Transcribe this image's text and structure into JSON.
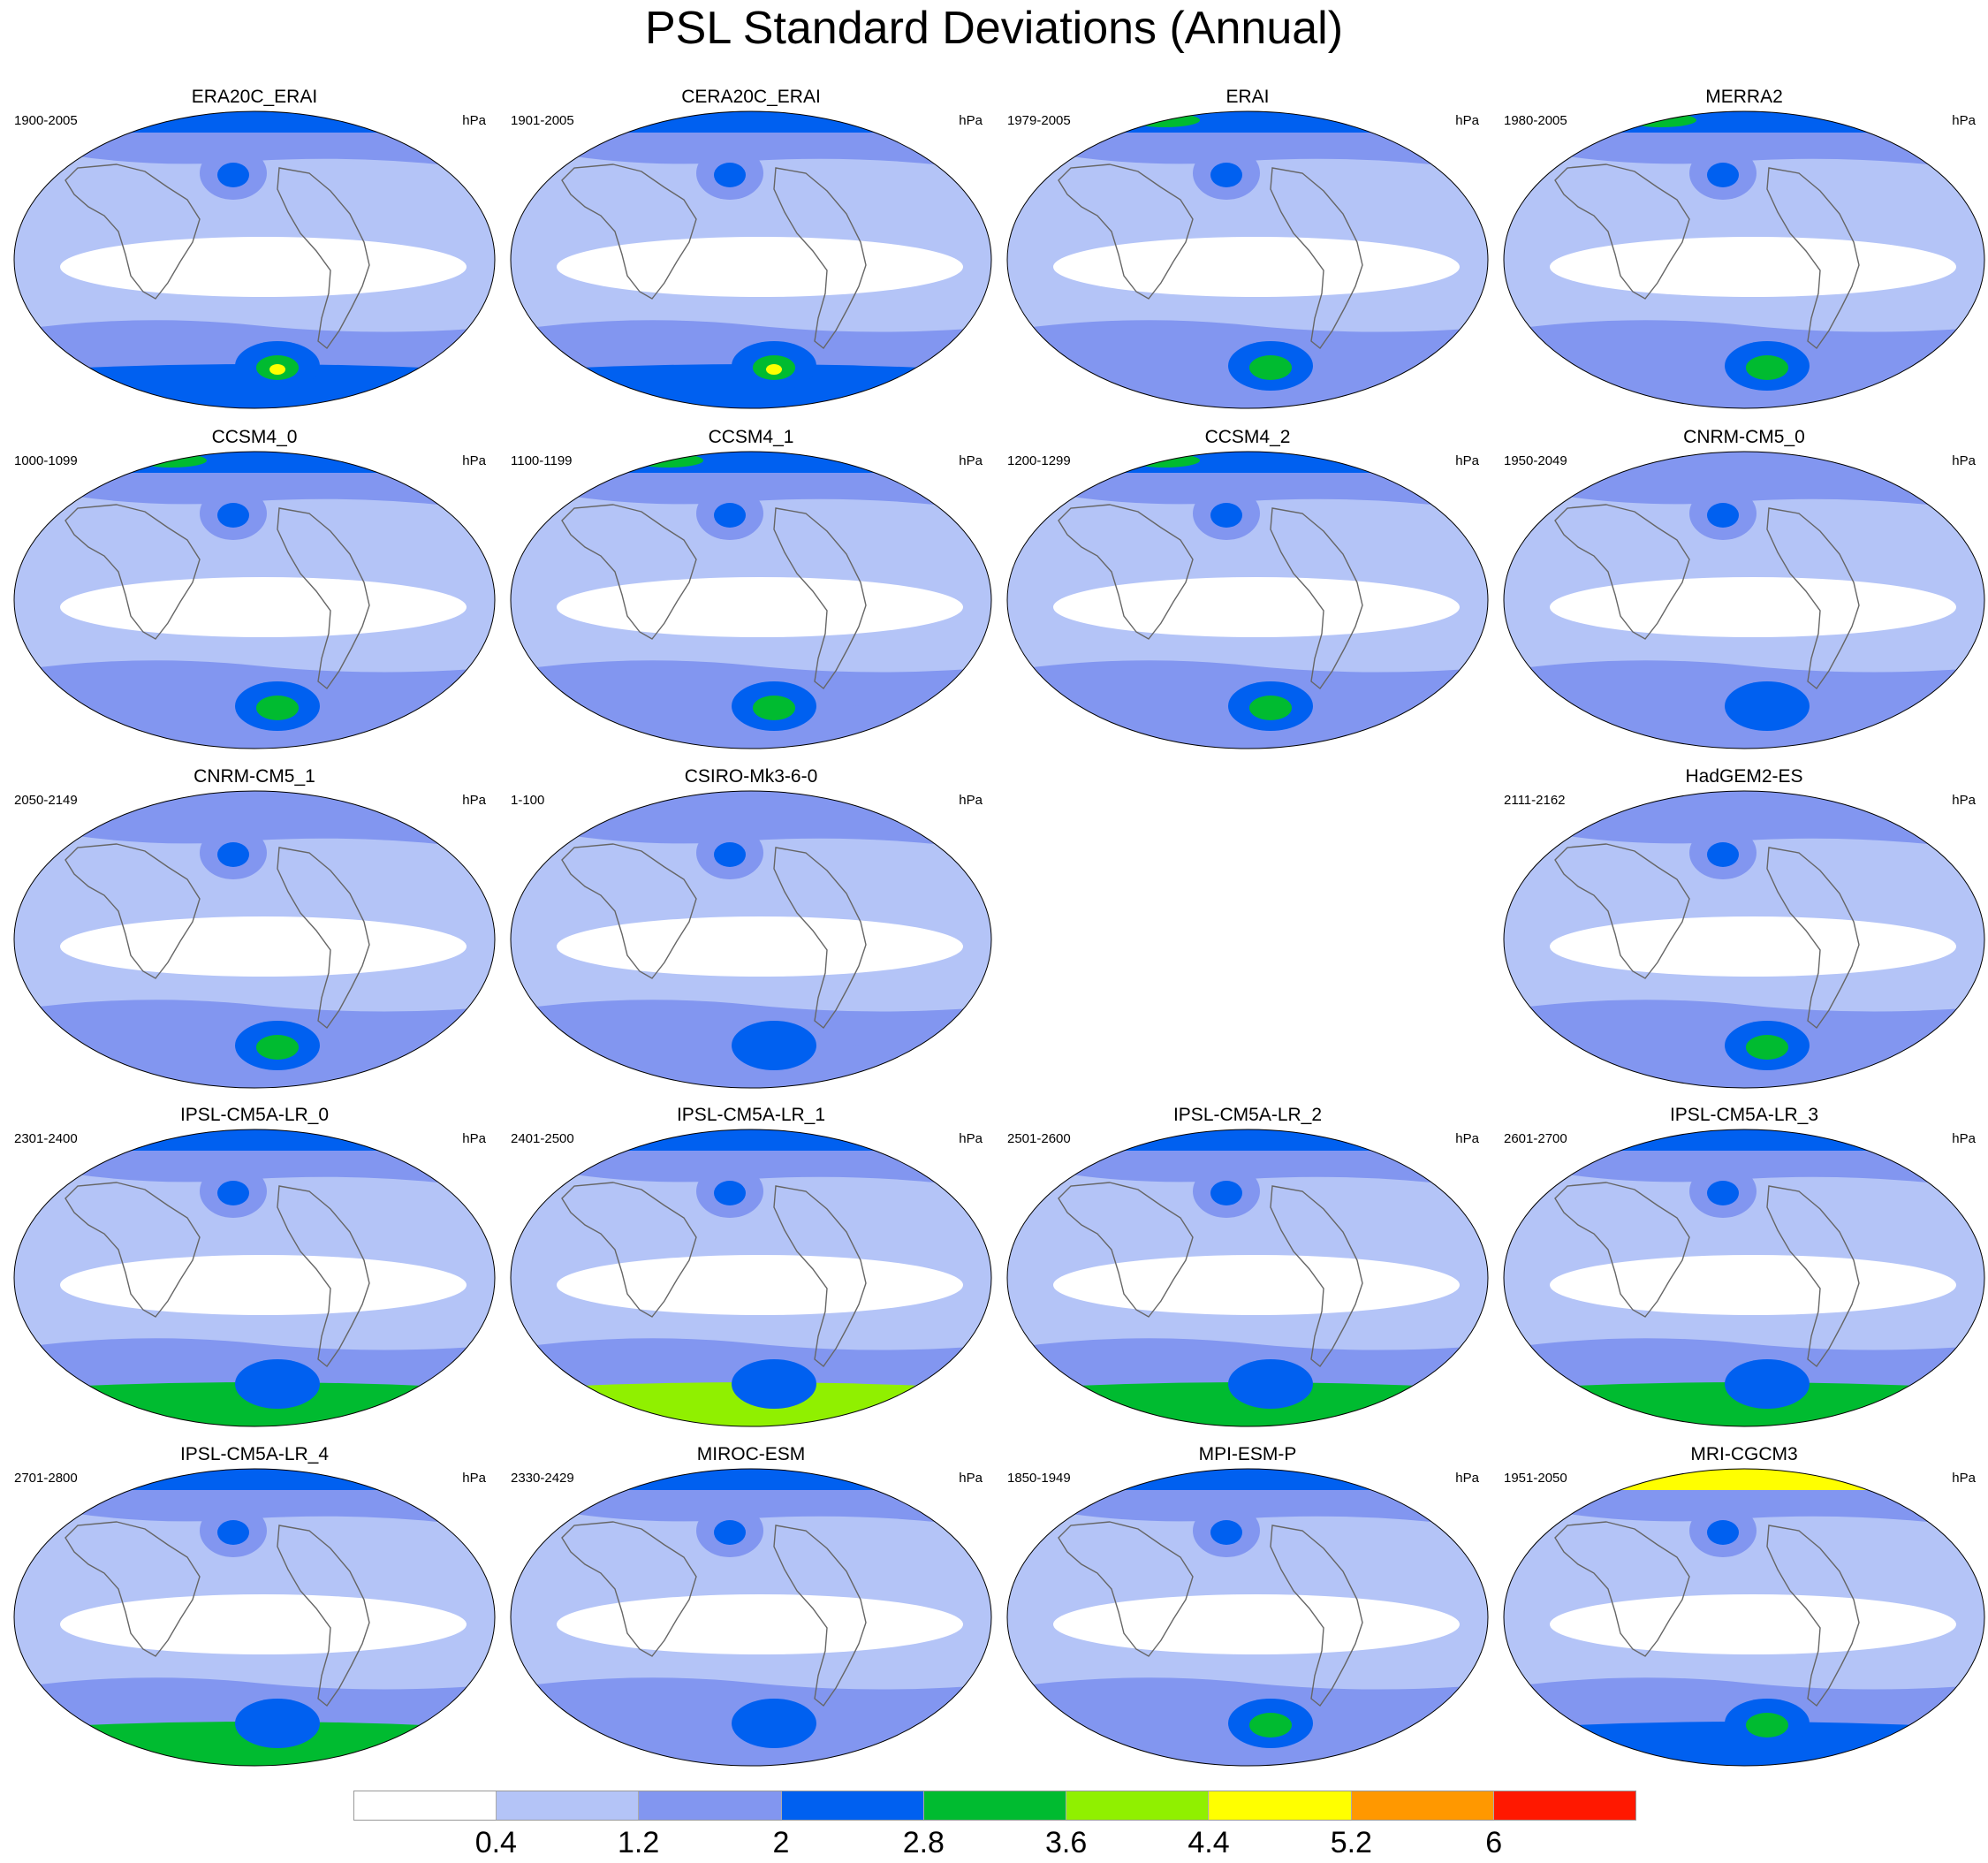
{
  "title": "PSL Standard Deviations (Annual)",
  "units": "hPa",
  "colorbar": {
    "colors": [
      "#ffffff",
      "#b4c4f7",
      "#8296f0",
      "#0060f0",
      "#00bb30",
      "#90f000",
      "#ffff00",
      "#ff9800",
      "#ff1800"
    ],
    "labels": [
      "0.4",
      "1.2",
      "2",
      "2.8",
      "3.6",
      "4.4",
      "5.2",
      "6"
    ]
  },
  "panels": [
    {
      "name": "ERA20C_ERAI",
      "years": "1900-2005"
    },
    {
      "name": "CERA20C_ERAI",
      "years": "1901-2005"
    },
    {
      "name": "ERAI",
      "years": "1979-2005"
    },
    {
      "name": "MERRA2",
      "years": "1980-2005"
    },
    {
      "name": "CCSM4_0",
      "years": "1000-1099"
    },
    {
      "name": "CCSM4_1",
      "years": "1100-1199"
    },
    {
      "name": "CCSM4_2",
      "years": "1200-1299"
    },
    {
      "name": "CNRM-CM5_0",
      "years": "1950-2049"
    },
    {
      "name": "CNRM-CM5_1",
      "years": "2050-2149"
    },
    {
      "name": "CSIRO-Mk3-6-0",
      "years": "1-100"
    },
    {
      "name": "HadGEM2-ES",
      "years": "2111-2162"
    },
    {
      "name": "IPSL-CM5A-LR_0",
      "years": "2301-2400"
    },
    {
      "name": "IPSL-CM5A-LR_1",
      "years": "2401-2500"
    },
    {
      "name": "IPSL-CM5A-LR_2",
      "years": "2501-2600"
    },
    {
      "name": "IPSL-CM5A-LR_3",
      "years": "2601-2700"
    },
    {
      "name": "IPSL-CM5A-LR_4",
      "years": "2701-2800"
    },
    {
      "name": "MIROC-ESM",
      "years": "2330-2429"
    },
    {
      "name": "MPI-ESM-P",
      "years": "1850-1949"
    },
    {
      "name": "MRI-CGCM3",
      "years": "1951-2050"
    }
  ]
}
